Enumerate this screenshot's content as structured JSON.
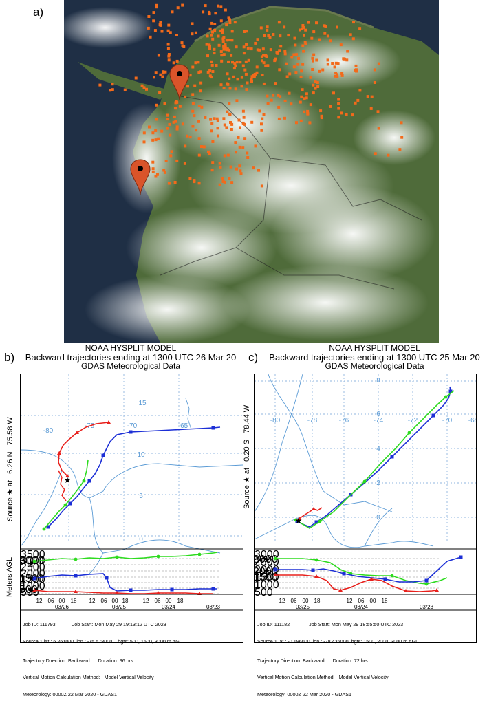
{
  "panel_a": {
    "label": "a)"
  },
  "panel_b": {
    "label": "b)",
    "header": {
      "line1": "NOAA HYSPLIT MODEL",
      "line2": "Backward trajectories ending at 1300 UTC 26 Mar 20",
      "line3": "GDAS Meteorological Data"
    },
    "source_axis": {
      "prefix": "Source ★ at",
      "lat": "6.26 N",
      "lon": "75.58 W"
    },
    "lon_labels": [
      "-80",
      "-75",
      "-70",
      "-65"
    ],
    "lat_labels": [
      "15",
      "10",
      "5",
      "0"
    ],
    "meters_agl_label": "Meters AGL",
    "left_height_labels": [
      "3000",
      "1500",
      "500"
    ],
    "right_height_labels": [
      "3500",
      "3000",
      "2500",
      "2000",
      "1500",
      "1000",
      "500"
    ],
    "hour_labels": [
      "12",
      "06",
      "00",
      "18",
      "12",
      "06",
      "00",
      "18",
      "12",
      "06",
      "00",
      "18"
    ],
    "date_labels": [
      "03/26",
      "03/25",
      "03/24",
      "03/23"
    ],
    "footer": {
      "line1_left": "Job ID: 111793",
      "line1_right": "Job Start: Mon May 29 19:13:12 UTC 2023",
      "line2_left": "Source 1 lat.: 6.261000  lon.: -75.578000",
      "line2_right": "hgts: 500, 1500, 3000 m AGL",
      "line3_left": "Trajectory Direction: Backward",
      "line3_right": "Duration: 96 hrs",
      "line4_left": "Vertical Motion Calculation Method:",
      "line4_right": "Model Vertical Velocity",
      "line5": "Meteorology: 0000Z 22 Mar 2020 - GDAS1"
    }
  },
  "panel_c": {
    "label": "c)",
    "header": {
      "line1": "NOAA HYSPLIT MODEL",
      "line2": "Backward trajectories ending at 1300 UTC 25 Mar 20",
      "line3": "GDAS Meteorological Data"
    },
    "source_axis": {
      "prefix": "Source ★ at",
      "lat": "0.20 S",
      "lon": "78.44 W"
    },
    "lon_labels": [
      "-80",
      "-78",
      "-76",
      "-74",
      "-72",
      "-70",
      "-68"
    ],
    "lat_labels": [
      "8",
      "6",
      "4",
      "2",
      "0"
    ],
    "meters_agl_label": "Meters AGL",
    "left_height_labels": [
      "3000",
      "2000",
      "1500"
    ],
    "right_height_labels": [
      "3000",
      "2500",
      "2000",
      "1500",
      "1000",
      "500"
    ],
    "hour_labels": [
      "12",
      "06",
      "00",
      "18",
      "12",
      "06",
      "00",
      "18"
    ],
    "date_labels": [
      "03/25",
      "03/24",
      "03/23"
    ],
    "footer": {
      "line1_left": "Job ID: 111182",
      "line1_right": "Job Start: Mon May 29 18:55:50 UTC 2023",
      "line2_left": "Source 1 lat.: -0.196000  lon.: -78.436000",
      "line2_right": "hgts: 1500, 2000, 3000 m AGL",
      "line3_left": "Trajectory Direction: Backward",
      "line3_right": "Duration: 72 hrs",
      "line4_left": "Vertical Motion Calculation Method:",
      "line4_right": "Model Vertical Velocity",
      "line5": "Meteorology: 0000Z 22 Mar 2020 - GDAS1"
    }
  },
  "colors": {
    "fire": "#f26a1b",
    "marker": "#d9542a",
    "traj_low": "#e8201c",
    "traj_mid": "#1c2fd6",
    "traj_high": "#2ddb1e",
    "map_lines": "#5b9bd5"
  }
}
